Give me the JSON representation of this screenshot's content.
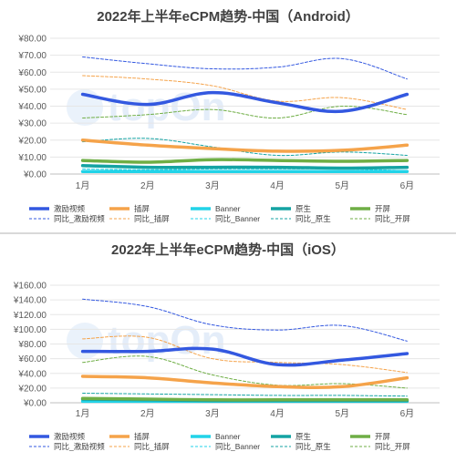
{
  "chart_data": [
    {
      "type": "line",
      "title": "2022年上半年eCPM趋势-中国（Android）",
      "categories": [
        "1月",
        "2月",
        "3月",
        "4月",
        "5月",
        "6月"
      ],
      "y_ticks": [
        "¥0.00",
        "¥10.00",
        "¥20.00",
        "¥30.00",
        "¥40.00",
        "¥50.00",
        "¥60.00",
        "¥70.00",
        "¥80.00"
      ],
      "ylim": [
        0,
        80
      ],
      "watermark": "topOn",
      "legend_position": "bottom",
      "series": [
        {
          "name": "激励视频",
          "values": [
            47,
            41,
            48,
            42,
            37,
            47
          ],
          "color": "#3358e0",
          "style": "solid",
          "width": 3.5
        },
        {
          "name": "插屏",
          "values": [
            20,
            17,
            15,
            13.5,
            14,
            17
          ],
          "color": "#f5a34a",
          "style": "solid",
          "width": 3.5
        },
        {
          "name": "Banner",
          "values": [
            1.5,
            1.5,
            1.5,
            1.5,
            1.5,
            1.5
          ],
          "color": "#22d3e8",
          "style": "solid",
          "width": 3.5
        },
        {
          "name": "原生",
          "values": [
            5,
            4,
            4,
            4,
            3.5,
            4
          ],
          "color": "#14a3a3",
          "style": "solid",
          "width": 3.5
        },
        {
          "name": "开屏",
          "values": [
            8,
            7,
            8.5,
            8,
            7.5,
            8
          ],
          "color": "#6fae45",
          "style": "solid",
          "width": 3.5
        },
        {
          "name": "同比_激励视频",
          "values": [
            69,
            65,
            62,
            63,
            68,
            56
          ],
          "color": "#3358e0",
          "style": "dashed",
          "width": 1
        },
        {
          "name": "同比_插屏",
          "values": [
            58,
            56,
            52,
            43,
            45,
            38
          ],
          "color": "#f5a34a",
          "style": "dashed",
          "width": 1
        },
        {
          "name": "同比_Banner",
          "values": [
            3,
            2.5,
            3,
            3,
            3,
            2
          ],
          "color": "#22d3e8",
          "style": "dashed",
          "width": 1
        },
        {
          "name": "同比_原生",
          "values": [
            19,
            21,
            16,
            11,
            13,
            11
          ],
          "color": "#14a3a3",
          "style": "dashed",
          "width": 1
        },
        {
          "name": "同比_开屏",
          "values": [
            33,
            35,
            38,
            33,
            40,
            35
          ],
          "color": "#6fae45",
          "style": "dashed",
          "width": 1
        }
      ]
    },
    {
      "type": "line",
      "title": "2022年上半年eCPM趋势-中国（iOS）",
      "categories": [
        "1月",
        "2月",
        "3月",
        "4月",
        "5月",
        "6月"
      ],
      "y_ticks": [
        "¥0.00",
        "¥20.00",
        "¥40.00",
        "¥60.00",
        "¥80.00",
        "¥100.00",
        "¥120.00",
        "¥140.00",
        "¥160.00"
      ],
      "ylim": [
        0,
        160
      ],
      "watermark": "topOn",
      "legend_position": "bottom",
      "series": [
        {
          "name": "激励视频",
          "values": [
            70,
            70,
            73,
            52,
            58,
            67
          ],
          "color": "#3358e0",
          "style": "solid",
          "width": 3.5
        },
        {
          "name": "插屏",
          "values": [
            36,
            34,
            27,
            22,
            22,
            34
          ],
          "color": "#f5a34a",
          "style": "solid",
          "width": 3.5
        },
        {
          "name": "Banner",
          "values": [
            2,
            2,
            2,
            2,
            2,
            2
          ],
          "color": "#22d3e8",
          "style": "solid",
          "width": 3.5
        },
        {
          "name": "原生",
          "values": [
            5,
            4,
            3,
            3,
            3,
            3
          ],
          "color": "#14a3a3",
          "style": "solid",
          "width": 3.5
        },
        {
          "name": "开屏",
          "values": [
            6,
            5,
            4,
            4,
            4,
            4
          ],
          "color": "#6fae45",
          "style": "solid",
          "width": 3.5
        },
        {
          "name": "同比_激励视频",
          "values": [
            141,
            131,
            106,
            99,
            105,
            84
          ],
          "color": "#3358e0",
          "style": "dashed",
          "width": 1
        },
        {
          "name": "同比_插屏",
          "values": [
            87,
            89,
            60,
            55,
            52,
            41
          ],
          "color": "#f5a34a",
          "style": "dashed",
          "width": 1
        },
        {
          "name": "同比_Banner",
          "values": [
            4,
            4,
            3,
            3,
            4,
            3
          ],
          "color": "#22d3e8",
          "style": "dashed",
          "width": 1
        },
        {
          "name": "同比_原生",
          "values": [
            13,
            12,
            11,
            10,
            10,
            9
          ],
          "color": "#14a3a3",
          "style": "dashed",
          "width": 1
        },
        {
          "name": "同比_开屏",
          "values": [
            55,
            63,
            38,
            24,
            26,
            20
          ],
          "color": "#6fae45",
          "style": "dashed",
          "width": 1
        }
      ]
    }
  ]
}
